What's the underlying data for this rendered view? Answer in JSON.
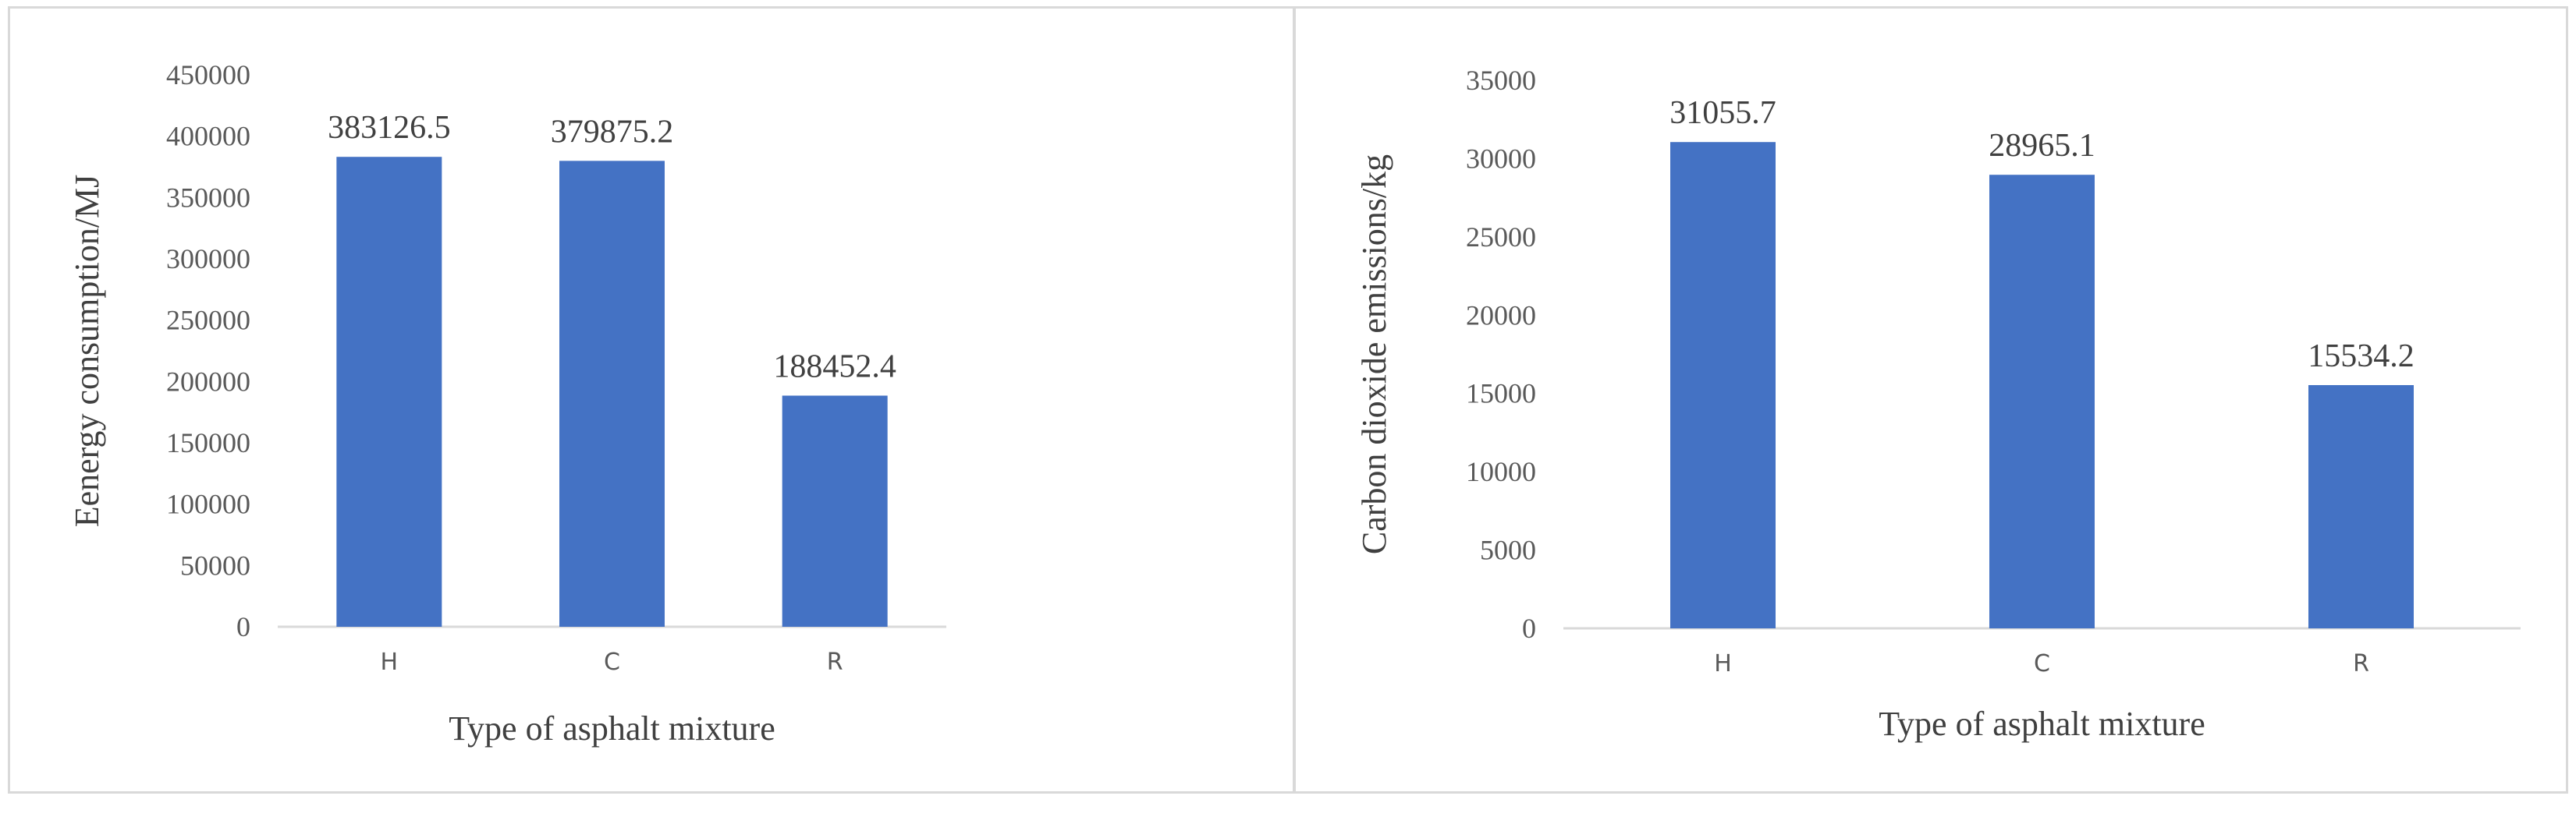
{
  "chart_data": [
    {
      "type": "bar",
      "title": "",
      "categories": [
        "H",
        "C",
        "R"
      ],
      "values": [
        383126.5,
        379875.2,
        188452.4
      ],
      "data_labels": [
        "383126.5",
        "379875.2",
        "188452.4"
      ],
      "xlabel": "Type of asphalt mixture",
      "ylabel": "Eenergy consumption/MJ",
      "ylim": [
        0,
        450000
      ],
      "yticks": [
        0,
        50000,
        100000,
        150000,
        200000,
        250000,
        300000,
        350000,
        400000,
        450000
      ],
      "grid": false,
      "bar_color": "#4472C4"
    },
    {
      "type": "bar",
      "title": "",
      "categories": [
        "H",
        "C",
        "R"
      ],
      "values": [
        31055.7,
        28965.1,
        15534.2
      ],
      "data_labels": [
        "31055.7",
        "28965.1",
        "15534.2"
      ],
      "xlabel": "Type of asphalt mixture",
      "ylabel": "Carbon dioxide emissions/kg",
      "ylim": [
        0,
        35000
      ],
      "yticks": [
        0,
        5000,
        10000,
        15000,
        20000,
        25000,
        30000,
        35000
      ],
      "grid": false,
      "bar_color": "#4472C4"
    }
  ]
}
